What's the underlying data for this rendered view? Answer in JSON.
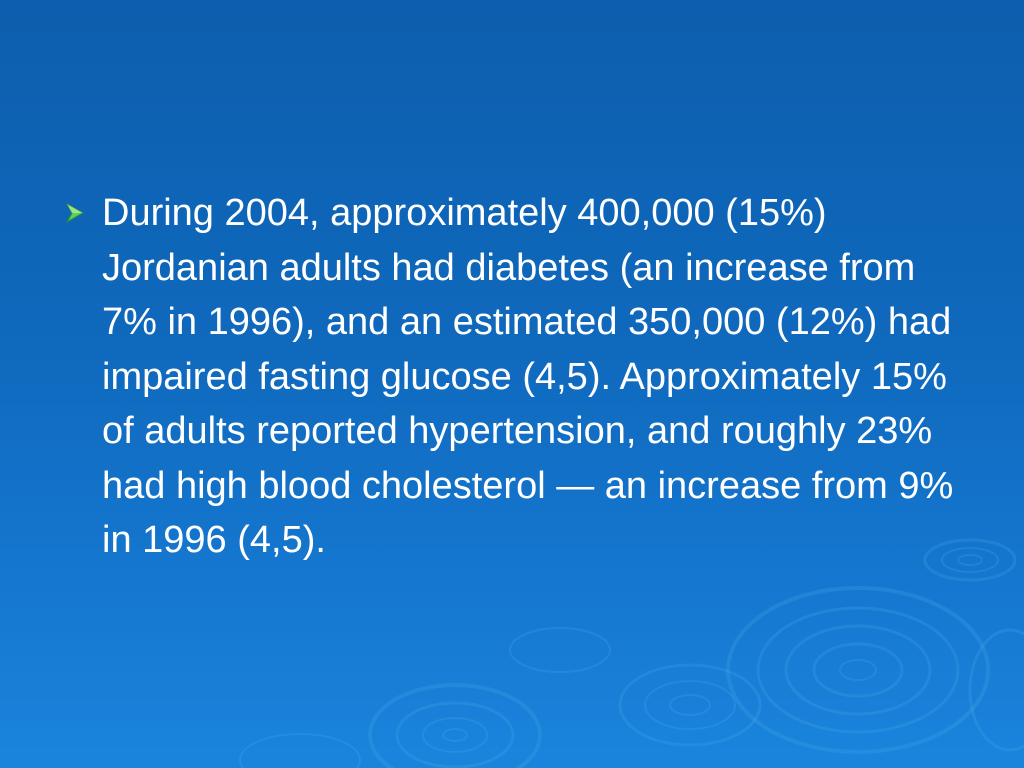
{
  "slide": {
    "bullet_icon": "arrow-bullet-icon",
    "bullet_color": "#7ee07a",
    "background_color": "#0f69bd",
    "text": "During 2004, approximately 400,000 (15%) Jordanian adults had diabetes (an increase from 7% in 1996), and an estimated 350,000 (12%) had impaired fasting glucose (4,5). Approximately 15% of adults reported hypertension, and roughly 23% had high blood cholesterol — an increase from 9% in 1996 (4,5)."
  }
}
